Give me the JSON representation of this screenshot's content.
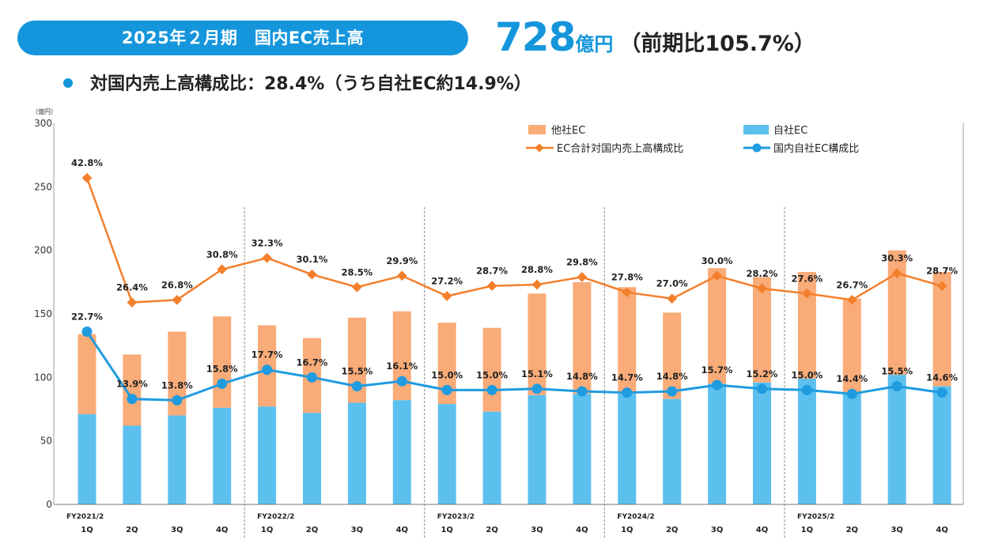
{
  "header": {
    "pill_title": "2025年２月期　国内EC売上高",
    "headline_number": "728",
    "headline_unit": "億円",
    "headline_yoy": "（前期比105.7%）",
    "subline": "対国内売上高構成比：28.4%（うち自社EC約14.9%）"
  },
  "colors": {
    "accent": "#1596dc",
    "other_ec": "#f9ab78",
    "own_ec": "#5bc0ee",
    "ec_ratio_line": "#f47f2b",
    "own_ratio_line": "#1f9be0"
  },
  "chart_data": {
    "type": "bar",
    "stacked": true,
    "unit_label": "（億円）",
    "ylim": [
      0,
      300
    ],
    "yticks": [
      "0",
      "50",
      "100",
      "150",
      "200",
      "250",
      "300"
    ],
    "categories": [
      "1Q",
      "2Q",
      "3Q",
      "4Q",
      "1Q",
      "2Q",
      "3Q",
      "4Q",
      "1Q",
      "2Q",
      "3Q",
      "4Q",
      "1Q",
      "2Q",
      "3Q",
      "4Q",
      "1Q",
      "2Q",
      "3Q",
      "4Q"
    ],
    "fiscal_years": [
      {
        "label": "FY2021/2",
        "start": 0
      },
      {
        "label": "FY2022/2",
        "start": 4
      },
      {
        "label": "FY2023/2",
        "start": 8
      },
      {
        "label": "FY2024/2",
        "start": 12
      },
      {
        "label": "FY2025/2",
        "start": 16
      }
    ],
    "series": [
      {
        "name": "自社EC",
        "kind": "bar",
        "values": [
          71,
          62,
          70,
          76,
          77,
          72,
          80,
          82,
          79,
          73,
          86,
          87,
          87,
          83,
          95,
          96,
          99,
          88,
          102,
          93
        ]
      },
      {
        "name": "他社EC",
        "kind": "bar",
        "values": [
          63,
          56,
          66,
          72,
          64,
          59,
          67,
          70,
          64,
          66,
          80,
          88,
          84,
          68,
          91,
          83,
          84,
          74,
          98,
          90
        ]
      },
      {
        "name": "EC合計対国内売上高構成比",
        "kind": "line",
        "values": [
          257,
          159,
          161,
          185,
          194,
          181,
          171,
          180,
          164,
          172,
          173,
          179,
          167,
          162,
          180,
          170,
          166,
          161,
          182,
          172
        ],
        "labels": [
          "42.8%",
          "26.4%",
          "26.8%",
          "30.8%",
          "32.3%",
          "30.1%",
          "28.5%",
          "29.9%",
          "27.2%",
          "28.7%",
          "28.8%",
          "29.8%",
          "27.8%",
          "27.0%",
          "30.0%",
          "28.2%",
          "27.6%",
          "26.7%",
          "30.3%",
          "28.7%"
        ]
      },
      {
        "name": "国内自社EC構成比",
        "kind": "line",
        "values": [
          136,
          83,
          82,
          95,
          106,
          100,
          93,
          97,
          90,
          90,
          91,
          89,
          88,
          89,
          94,
          91,
          90,
          87,
          93,
          88
        ],
        "labels": [
          "22.7%",
          "13.9%",
          "13.8%",
          "15.8%",
          "17.7%",
          "16.7%",
          "15.5%",
          "16.1%",
          "15.0%",
          "15.0%",
          "15.1%",
          "14.8%",
          "14.7%",
          "14.8%",
          "15.7%",
          "15.2%",
          "15.0%",
          "14.4%",
          "15.5%",
          "14.6%"
        ]
      }
    ],
    "legend": [
      "他社EC",
      "自社EC",
      "EC合計対国内売上高構成比",
      "国内自社EC構成比"
    ],
    "legend_position": "top-right"
  }
}
